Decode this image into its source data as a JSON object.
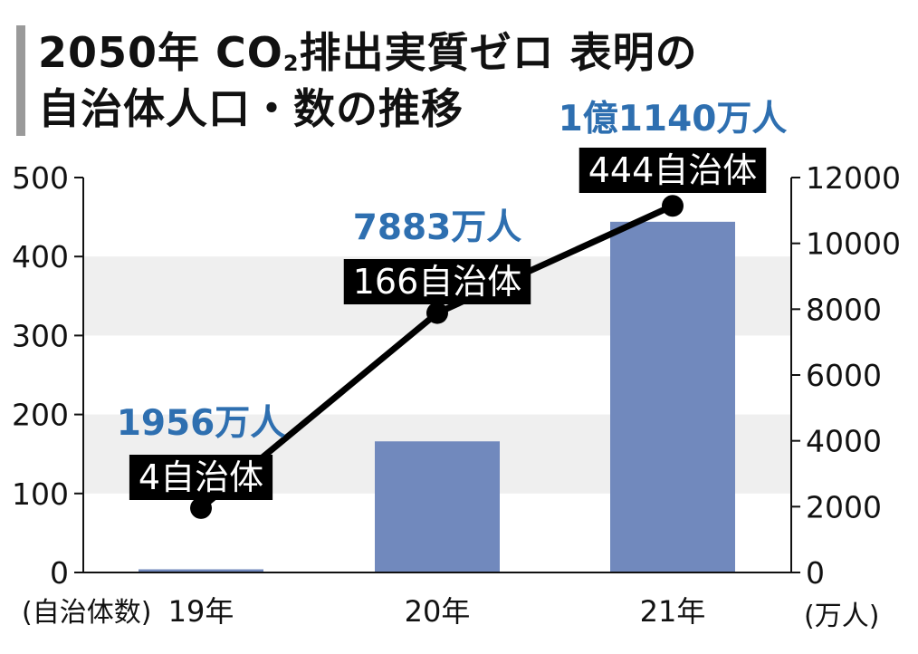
{
  "title": {
    "line1_a": "2050年 CO",
    "line1_sub": "2",
    "line1_b": "排出実質ゼロ 表明の",
    "line2": "自治体人口・数の推移"
  },
  "chart_data": {
    "type": "bar",
    "categories": [
      "19年",
      "20年",
      "21年"
    ],
    "series": [
      {
        "values": [
          4,
          166,
          444
        ],
        "axis": "left",
        "type": "bar",
        "color": "#7189bd"
      },
      {
        "values": [
          1956,
          7883,
          11140
        ],
        "axis": "right",
        "type": "line",
        "color": "#000000"
      }
    ],
    "annotations": {
      "population": [
        "1956万人",
        "7883万人",
        "1億1140万人"
      ],
      "count": [
        "4自治体",
        "166自治体",
        "444自治体"
      ]
    },
    "ylim_left": [
      0,
      500
    ],
    "ylim_right": [
      0,
      12000
    ],
    "yticks_left": [
      0,
      100,
      200,
      300,
      400,
      500
    ],
    "yticks_right": [
      0,
      2000,
      4000,
      6000,
      8000,
      10000,
      12000
    ],
    "ylabel_left": "(自治体数)",
    "ylabel_right": "(万人)",
    "grid": "alternating bands",
    "colors": {
      "bar": "#7189bd",
      "population_label": "#2e6fb0",
      "band": "#efefef",
      "label_bg": "#000000"
    }
  }
}
